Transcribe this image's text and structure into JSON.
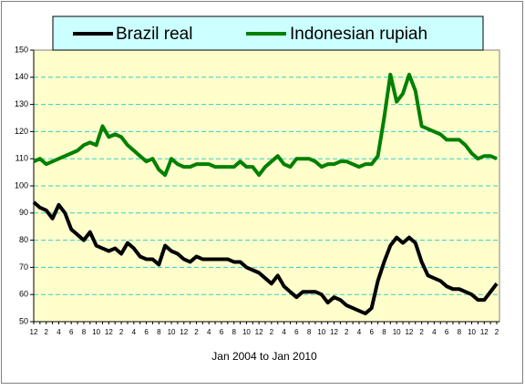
{
  "chart_data": {
    "type": "line",
    "xlabel": "Jan 2004  to Jan   2010",
    "categories": [
      "12",
      null,
      "2",
      null,
      "4",
      null,
      "6",
      null,
      "8",
      null,
      "10",
      null,
      "12",
      null,
      "2",
      null,
      "4",
      null,
      "6",
      null,
      "8",
      null,
      "10",
      null,
      "12",
      null,
      "2",
      null,
      "4",
      null,
      "6",
      null,
      "8",
      null,
      "10",
      null,
      "12",
      null,
      "2",
      null,
      "4",
      null,
      "6",
      null,
      "8",
      null,
      "10",
      null,
      "12",
      null,
      "2",
      null,
      "4",
      null,
      "6",
      null,
      "8",
      null,
      "10",
      null,
      "12",
      null,
      "2",
      null,
      "4",
      null,
      "6",
      null,
      "8",
      null,
      "10",
      null,
      "12",
      null,
      "2"
    ],
    "series": [
      {
        "name": "Brazil real",
        "color": "#000000",
        "values": [
          94,
          92,
          91,
          88,
          93,
          90,
          84,
          82,
          80,
          83,
          78,
          77,
          76,
          77,
          75,
          79,
          77,
          74,
          73,
          73,
          71,
          78,
          76,
          75,
          73,
          72,
          74,
          73,
          73,
          73,
          73,
          73,
          72,
          72,
          70,
          69,
          68,
          66,
          64,
          67,
          63,
          61,
          59,
          61,
          61,
          61,
          60,
          57,
          59,
          58,
          56,
          55,
          54,
          53,
          55,
          65,
          72,
          78,
          81,
          79,
          81,
          79,
          72,
          67,
          66,
          65,
          63,
          62,
          62,
          61,
          60,
          58,
          58,
          61,
          64
        ]
      },
      {
        "name": "Indonesian rupiah",
        "color": "#008000",
        "values": [
          109,
          110,
          108,
          109,
          110,
          111,
          112,
          113,
          115,
          116,
          115,
          122,
          118,
          119,
          118,
          115,
          113,
          111,
          109,
          110,
          106,
          104,
          110,
          108,
          107,
          107,
          108,
          108,
          108,
          107,
          107,
          107,
          107,
          109,
          107,
          107,
          104,
          107,
          109,
          111,
          108,
          107,
          110,
          110,
          110,
          109,
          107,
          108,
          108,
          109,
          109,
          108,
          107,
          108,
          108,
          111,
          125,
          141,
          131,
          134,
          141,
          135,
          122,
          121,
          120,
          119,
          117,
          117,
          117,
          115,
          112,
          110,
          111,
          111,
          110
        ]
      }
    ],
    "ylim": [
      50,
      150
    ],
    "yticks": [
      50,
      60,
      70,
      80,
      90,
      100,
      110,
      120,
      130,
      140,
      150
    ],
    "grid": true,
    "legend": "top"
  }
}
